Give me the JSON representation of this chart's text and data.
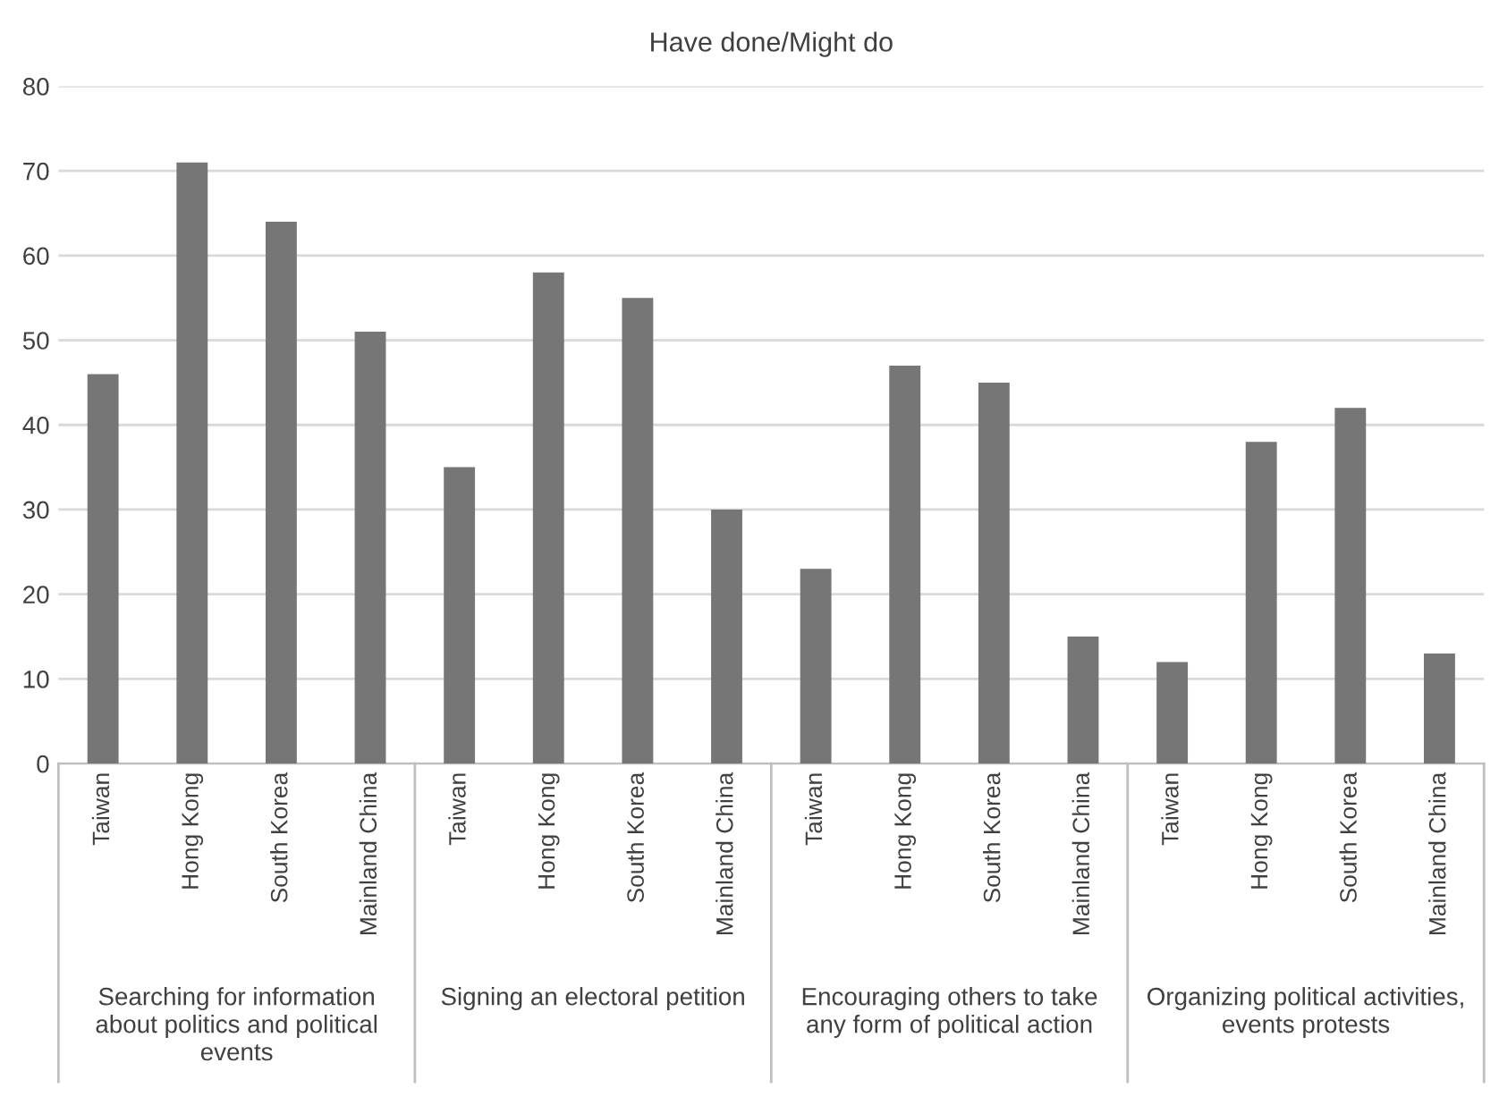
{
  "chart_data": {
    "type": "bar",
    "title": "Have done/Might do",
    "categories": [
      "Taiwan",
      "Hong Kong",
      "South Korea",
      "Mainland China",
      "Taiwan",
      "Hong Kong",
      "South Korea",
      "Mainland China",
      "Taiwan",
      "Hong Kong",
      "South Korea",
      "Mainland China",
      "Taiwan",
      "Hong Kong",
      "South Korea",
      "Mainland China"
    ],
    "values": [
      46,
      71,
      64,
      51,
      35,
      58,
      55,
      30,
      23,
      47,
      45,
      15,
      12,
      38,
      42,
      13
    ],
    "color": "#767676",
    "annotations": [
      "Searching for information about politics and political events",
      "Signing an electoral petition",
      "Encouraging others to take any form of political action",
      "Organizing political activities, events protests"
    ],
    "ylim": [
      0,
      80
    ],
    "yticks": [
      0,
      10,
      20,
      30,
      40,
      50,
      60,
      70,
      80
    ],
    "grid": "y"
  }
}
